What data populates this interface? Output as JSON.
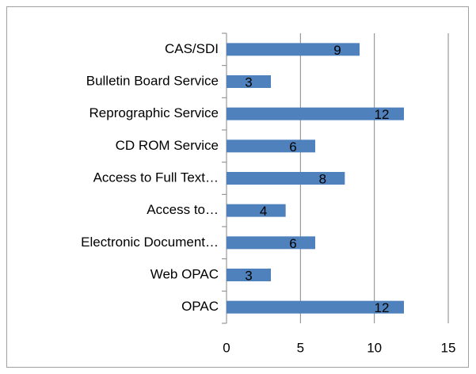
{
  "chart_data": {
    "type": "hbar",
    "categories": [
      "CAS/SDI",
      "Bulletin Board Service",
      "Reprographic Service",
      "CD ROM Service",
      "Access to Full Text…",
      "Access to…",
      "Electronic Document…",
      "Web OPAC",
      "OPAC"
    ],
    "values": [
      9,
      3,
      12,
      6,
      8,
      4,
      6,
      3,
      12
    ],
    "color": "#4f81bd",
    "xlim": [
      0,
      15
    ],
    "xticks": [
      0,
      5,
      10,
      15
    ],
    "grid": true
  }
}
